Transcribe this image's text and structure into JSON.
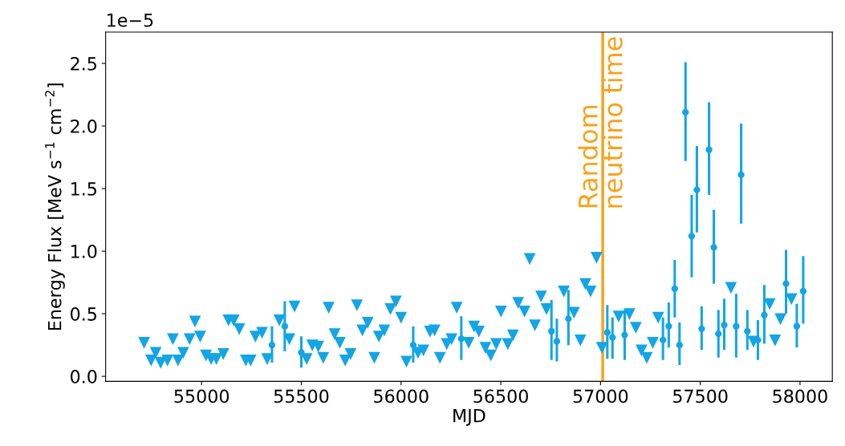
{
  "chart_data": {
    "type": "scatter",
    "xlabel": "MJD",
    "ylabel": "Energy Flux [MeV s$^{−1}$ cm$^{−2}$]",
    "annotations": [
      "1e−5"
    ],
    "xlim": [
      54519,
      58162
    ],
    "xticks": [
      55000,
      55500,
      56000,
      56500,
      57000,
      57500,
      58000
    ],
    "ylim": [
      -0.04,
      2.75
    ],
    "yticks": [
      {
        "value": 0,
        "label": "0.0"
      },
      0.5,
      {
        "value": 1,
        "label": "1.0"
      },
      1.5,
      {
        "value": 2,
        "label": "2.0"
      },
      2.5
    ],
    "grid": false,
    "ref_lines": [
      {
        "axis": "x",
        "value": 57011,
        "label": "Random\nneutrino time",
        "color": "#f7a21b",
        "line_style": "solid"
      }
    ],
    "series": [
      {
        "marker": "triangle",
        "color": "#14a5e6",
        "x": [
          54712,
          54747,
          54770,
          54795,
          54829,
          54856,
          54882,
          54908,
          54940,
          54967,
          54993,
          55022,
          55048,
          55074,
          55109,
          55135,
          55161,
          55189,
          55222,
          55246,
          55270,
          55303,
          55329,
          55390,
          55440,
          55466,
          55527,
          55555,
          55585,
          55610,
          55637,
          55667,
          55693,
          55720,
          55747,
          55779,
          55806,
          55833,
          55866,
          55889,
          55916,
          55947,
          55974,
          56000,
          56027,
          56085,
          56112,
          56145,
          56168,
          56195,
          56229,
          56253,
          56279,
          56339,
          56366,
          56390,
          56423,
          56450,
          56477,
          56501,
          56535,
          56561,
          56587,
          56619,
          56645,
          56671,
          56702,
          56729,
          56816,
          56867,
          56899,
          56924,
          56950,
          56980,
          57007,
          57091,
          57145,
          57177,
          57205,
          57232,
          57262,
          57289,
          57654,
          57767,
          57848,
          57875,
          57902,
          57957
        ],
        "values": [
          0.27,
          0.13,
          0.19,
          0.11,
          0.13,
          0.3,
          0.13,
          0.19,
          0.3,
          0.44,
          0.32,
          0.17,
          0.14,
          0.14,
          0.18,
          0.45,
          0.45,
          0.38,
          0.13,
          0.13,
          0.32,
          0.35,
          0.14,
          0.45,
          0.3,
          0.56,
          0.14,
          0.25,
          0.24,
          0.15,
          0.55,
          0.34,
          0.27,
          0.13,
          0.18,
          0.57,
          0.37,
          0.43,
          0.15,
          0.32,
          0.37,
          0.54,
          0.6,
          0.47,
          0.12,
          0.19,
          0.21,
          0.36,
          0.37,
          0.15,
          0.26,
          0.3,
          0.55,
          0.27,
          0.4,
          0.36,
          0.23,
          0.17,
          0.26,
          0.52,
          0.26,
          0.33,
          0.59,
          0.52,
          0.94,
          0.41,
          0.64,
          0.54,
          0.68,
          0.51,
          0.29,
          0.74,
          0.68,
          0.95,
          0.23,
          0.48,
          0.5,
          0.39,
          0.21,
          0.15,
          0.27,
          0.47,
          0.71,
          0.28,
          0.58,
          0.29,
          0.46,
          0.62
        ]
      },
      {
        "marker": "circle",
        "color": "#14a5e6",
        "x": [
          55353,
          55417,
          55500,
          56061,
          56302,
          56754,
          56781,
          56839,
          57034,
          57060,
          57121,
          57313,
          57342,
          57372,
          57396,
          57426,
          57457,
          57483,
          57507,
          57544,
          57568,
          57591,
          57620,
          57680,
          57705,
          57736,
          57789,
          57821,
          57930,
          57984,
          58016
        ],
        "values": [
          0.25,
          0.4,
          0.19,
          0.25,
          0.3,
          0.36,
          0.28,
          0.46,
          0.35,
          0.31,
          0.33,
          0.29,
          0.4,
          0.7,
          0.25,
          2.11,
          1.12,
          1.49,
          0.38,
          1.81,
          1.03,
          0.34,
          0.41,
          0.4,
          1.61,
          0.36,
          0.29,
          0.49,
          0.74,
          0.4,
          0.68
        ],
        "errors": [
          [
            0.11,
            0.4
          ],
          [
            0.2,
            0.6
          ],
          [
            0.07,
            0.32
          ],
          [
            0.11,
            0.4
          ],
          [
            0.13,
            0.48
          ],
          [
            0.13,
            0.61
          ],
          [
            0.12,
            0.46
          ],
          [
            0.25,
            0.69
          ],
          [
            0.14,
            0.57
          ],
          [
            0.14,
            0.47
          ],
          [
            0.13,
            0.53
          ],
          [
            0.13,
            0.47
          ],
          [
            0.23,
            0.59
          ],
          [
            0.47,
            0.93
          ],
          [
            0.09,
            0.43
          ],
          [
            1.72,
            2.51
          ],
          [
            0.79,
            1.45
          ],
          [
            1.15,
            1.84
          ],
          [
            0.21,
            0.56
          ],
          [
            1.45,
            2.19
          ],
          [
            0.74,
            1.33
          ],
          [
            0.15,
            0.53
          ],
          [
            0.21,
            0.62
          ],
          [
            0.15,
            0.66
          ],
          [
            1.22,
            2.02
          ],
          [
            0.21,
            0.53
          ],
          [
            0.13,
            0.45
          ],
          [
            0.26,
            0.73
          ],
          [
            0.5,
            1.01
          ],
          [
            0.23,
            0.58
          ],
          [
            0.42,
            0.96
          ]
        ]
      }
    ]
  }
}
